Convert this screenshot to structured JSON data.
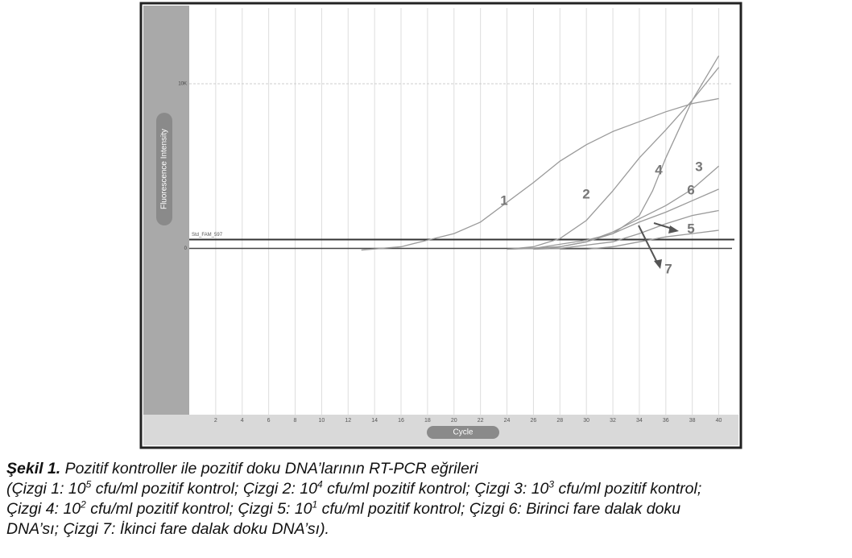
{
  "chart_data": {
    "type": "line",
    "y_label": "Fluorescence Intensity",
    "x_label": "Cycle",
    "xlim": [
      0,
      41
    ],
    "xticks": [
      2,
      4,
      6,
      8,
      10,
      12,
      14,
      16,
      18,
      20,
      22,
      24,
      26,
      28,
      30,
      32,
      34,
      36,
      38,
      40
    ],
    "ylim": [
      -10100,
      14600
    ],
    "yticks": [
      0,
      {
        "value": 10000,
        "label": "10K"
      }
    ],
    "grid": true,
    "threshold": {
      "label": "Std_FAM_597",
      "value": 540
    },
    "series": [
      {
        "name": "1",
        "color": "#9a9a9a",
        "x": [
          13,
          16,
          18,
          20,
          22,
          24,
          26,
          28,
          30,
          32,
          34,
          36,
          38,
          40
        ],
        "values": [
          -100,
          100,
          500,
          900,
          1600,
          2800,
          4000,
          5300,
          6300,
          7100,
          7700,
          8300,
          8800,
          9100
        ]
      },
      {
        "name": "2",
        "color": "#9a9a9a",
        "x": [
          24,
          26,
          28,
          30,
          32,
          34,
          36,
          38,
          40
        ],
        "values": [
          -50,
          100,
          600,
          1700,
          3500,
          5500,
          7200,
          9000,
          11000
        ]
      },
      {
        "name": "3",
        "color": "#9a9a9a",
        "x": [
          24,
          28,
          30,
          32,
          34,
          36,
          38,
          40
        ],
        "values": [
          -50,
          100,
          400,
          1000,
          1800,
          2600,
          3600,
          5000
        ]
      },
      {
        "name": "4",
        "color": "#9a9a9a",
        "x": [
          26,
          28,
          30,
          32,
          34,
          35,
          36,
          38,
          40
        ],
        "values": [
          -50,
          100,
          400,
          900,
          2000,
          3500,
          5500,
          9000,
          11700
        ]
      },
      {
        "name": "5",
        "color": "#9a9a9a",
        "x": [
          26,
          28,
          32,
          34,
          36,
          38,
          40
        ],
        "values": [
          -50,
          0,
          400,
          900,
          1500,
          2000,
          2300
        ]
      },
      {
        "name": "6",
        "color": "#9a9a9a",
        "x": [
          24,
          26,
          30,
          32,
          34,
          36,
          38,
          40
        ],
        "values": [
          -50,
          0,
          500,
          900,
          1600,
          2200,
          2900,
          3600
        ]
      },
      {
        "name": "7",
        "color": "#9a9a9a",
        "x": [
          28,
          30,
          32,
          34,
          36,
          38,
          40
        ],
        "values": [
          -50,
          -50,
          100,
          400,
          700,
          900,
          1100
        ]
      }
    ]
  },
  "caption": {
    "title": "Şekil 1.",
    "heading": "Pozitif kontroller ile pozitif doku DNA’larının RT-PCR eğrileri",
    "lines": [
      [
        "(Çizgi 1: 10",
        "5",
        " cfu/ml pozitif kontrol; Çizgi 2: 10",
        "4",
        " cfu/ml pozitif kontrol; Çizgi 3: 10",
        "3",
        " cfu/ml pozitif kontrol;"
      ],
      [
        "Çizgi 4: 10",
        "2",
        " cfu/ml pozitif kontrol; Çizgi 5: 10",
        "1",
        " cfu/ml pozitif kontrol; Çizgi 6: Birinci fare dalak doku"
      ],
      [
        "DNA’sı; Çizgi 7: İkinci fare dalak doku DNA’sı)."
      ]
    ]
  }
}
